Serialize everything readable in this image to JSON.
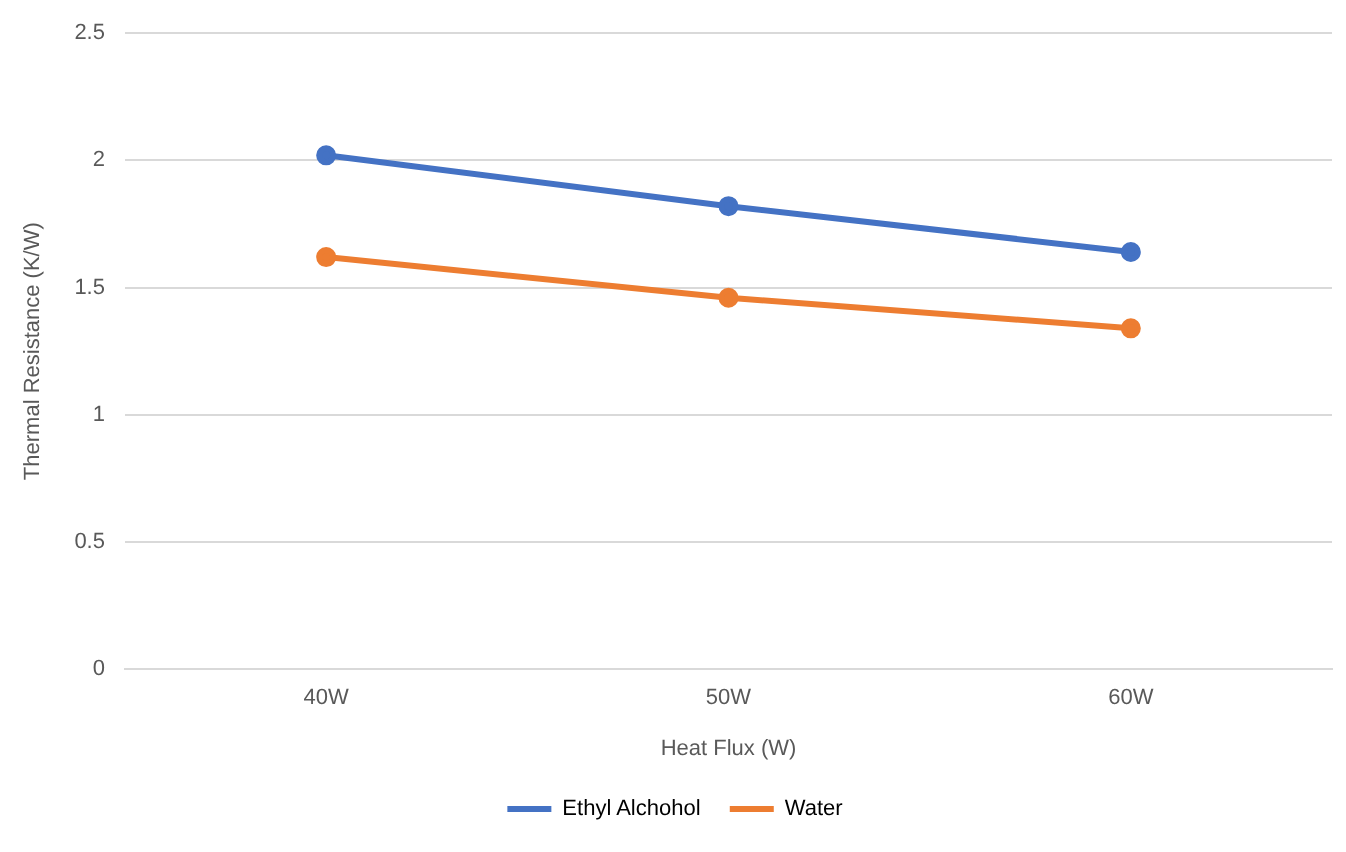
{
  "chart_data": {
    "type": "line",
    "xlabel": "Heat Flux (W)",
    "ylabel": "Thermal Resistance (K/W)",
    "categories": [
      "40W",
      "50W",
      "60W"
    ],
    "series": [
      {
        "name": "Ethyl Alchohol",
        "color": "#4472c4",
        "values": [
          2.02,
          1.82,
          1.64
        ]
      },
      {
        "name": "Water",
        "color": "#ed7d31",
        "values": [
          1.62,
          1.46,
          1.34
        ]
      }
    ],
    "ylim": [
      0,
      2.5
    ],
    "yticks": [
      0,
      0.5,
      1,
      1.5,
      2,
      2.5
    ],
    "grid": "y",
    "legend": "bottom",
    "marker": "circle",
    "line_style": "solid"
  }
}
